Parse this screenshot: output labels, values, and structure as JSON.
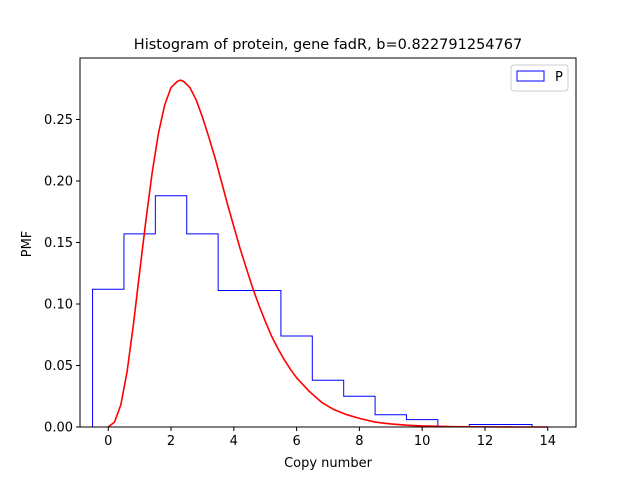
{
  "chart_data": {
    "type": "histogram",
    "title": "Histogram of protein, gene fadR, b=0.822791254767",
    "xlabel": "Copy number",
    "ylabel": "PMF",
    "xlim": [
      -0.9,
      14.9
    ],
    "ylim": [
      0,
      0.3
    ],
    "xticks": [
      0,
      2,
      4,
      6,
      8,
      10,
      12,
      14
    ],
    "yticks": [
      0.0,
      0.05,
      0.1,
      0.15,
      0.2,
      0.25
    ],
    "legend": {
      "position": "top-right",
      "entries": [
        {
          "label": "P",
          "color": "#0000ff"
        }
      ]
    },
    "grid": false,
    "histogram": {
      "name": "P",
      "color": "#0000ff",
      "bins": [
        {
          "left": -0.5,
          "right": 0.5,
          "value": 0.112
        },
        {
          "left": 0.5,
          "right": 1.5,
          "value": 0.157
        },
        {
          "left": 1.5,
          "right": 2.5,
          "value": 0.188
        },
        {
          "left": 2.5,
          "right": 3.5,
          "value": 0.157
        },
        {
          "left": 3.5,
          "right": 5.5,
          "value": 0.111
        },
        {
          "left": 5.5,
          "right": 6.5,
          "value": 0.074
        },
        {
          "left": 6.5,
          "right": 7.5,
          "value": 0.038
        },
        {
          "left": 7.5,
          "right": 8.5,
          "value": 0.025
        },
        {
          "left": 8.5,
          "right": 9.5,
          "value": 0.01
        },
        {
          "left": 9.5,
          "right": 10.5,
          "value": 0.006
        },
        {
          "left": 10.5,
          "right": 11.5,
          "value": 0.0
        },
        {
          "left": 11.5,
          "right": 13.5,
          "value": 0.002
        },
        {
          "left": 13.5,
          "right": 14.5,
          "value": 0.0
        }
      ]
    },
    "curve": {
      "color": "#ff0000",
      "points": [
        [
          0.0,
          0.0
        ],
        [
          0.2,
          0.004
        ],
        [
          0.4,
          0.018
        ],
        [
          0.6,
          0.045
        ],
        [
          0.8,
          0.083
        ],
        [
          1.0,
          0.126
        ],
        [
          1.2,
          0.168
        ],
        [
          1.4,
          0.207
        ],
        [
          1.6,
          0.239
        ],
        [
          1.8,
          0.262
        ],
        [
          2.0,
          0.276
        ],
        [
          2.2,
          0.281
        ],
        [
          2.3,
          0.282
        ],
        [
          2.4,
          0.281
        ],
        [
          2.6,
          0.276
        ],
        [
          2.8,
          0.266
        ],
        [
          3.0,
          0.252
        ],
        [
          3.2,
          0.236
        ],
        [
          3.4,
          0.219
        ],
        [
          3.6,
          0.2
        ],
        [
          3.8,
          0.181
        ],
        [
          4.0,
          0.163
        ],
        [
          4.2,
          0.145
        ],
        [
          4.4,
          0.129
        ],
        [
          4.6,
          0.113
        ],
        [
          4.8,
          0.099
        ],
        [
          5.0,
          0.086
        ],
        [
          5.2,
          0.074
        ],
        [
          5.4,
          0.064
        ],
        [
          5.6,
          0.055
        ],
        [
          5.8,
          0.047
        ],
        [
          6.0,
          0.04
        ],
        [
          6.4,
          0.029
        ],
        [
          6.8,
          0.02
        ],
        [
          7.2,
          0.014
        ],
        [
          7.6,
          0.01
        ],
        [
          8.0,
          0.007
        ],
        [
          8.5,
          0.004
        ],
        [
          9.0,
          0.0025
        ],
        [
          9.5,
          0.0015
        ],
        [
          10.0,
          0.0009
        ],
        [
          11.0,
          0.0003
        ],
        [
          12.0,
          0.0001
        ],
        [
          13.0,
          0.0
        ],
        [
          14.0,
          0.0
        ]
      ]
    }
  }
}
